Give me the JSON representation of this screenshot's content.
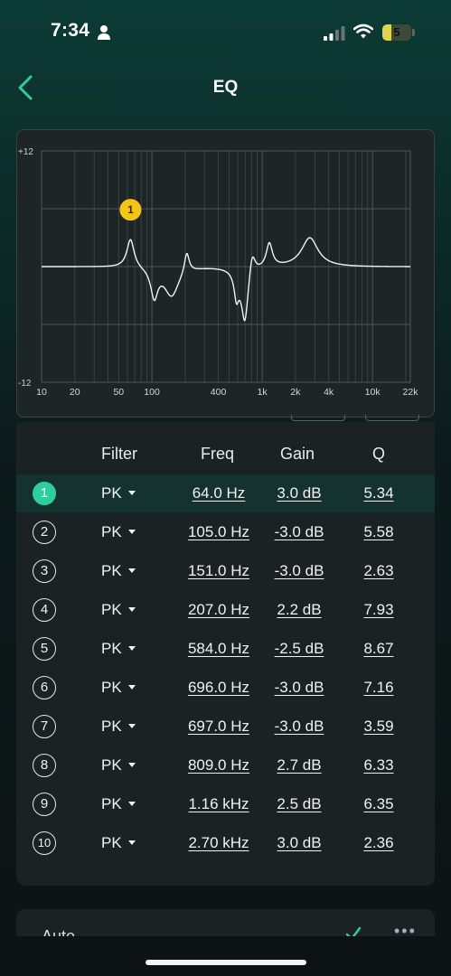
{
  "status_bar": {
    "time": "7:34",
    "battery_level": "5",
    "battery_fraction": 0.3
  },
  "header": {
    "title": "EQ",
    "back_icon": "chevron-left-icon"
  },
  "graph": {
    "y_max_label": "+12",
    "y_min_label": "-12",
    "x_ticks": [
      {
        "freq": 10,
        "label": "10"
      },
      {
        "freq": 20,
        "label": "20"
      },
      {
        "freq": 50,
        "label": "50"
      },
      {
        "freq": 100,
        "label": "100"
      },
      {
        "freq": 400,
        "label": "400"
      },
      {
        "freq": 1000,
        "label": "1k"
      },
      {
        "freq": 2000,
        "label": "2k"
      },
      {
        "freq": 4000,
        "label": "4k"
      },
      {
        "freq": 10000,
        "label": "10k"
      },
      {
        "freq": 22000,
        "label": "22k"
      }
    ],
    "selected_marker_label": "1"
  },
  "table": {
    "headers": {
      "filter": "Filter",
      "freq": "Freq",
      "gain": "Gain",
      "q": "Q"
    },
    "rows": [
      {
        "num": "1",
        "filter": "PK",
        "freq": "64.0 Hz",
        "gain": "3.0 dB",
        "q": "5.34",
        "selected": true
      },
      {
        "num": "2",
        "filter": "PK",
        "freq": "105.0 Hz",
        "gain": "-3.0 dB",
        "q": "5.58"
      },
      {
        "num": "3",
        "filter": "PK",
        "freq": "151.0 Hz",
        "gain": "-3.0 dB",
        "q": "2.63"
      },
      {
        "num": "4",
        "filter": "PK",
        "freq": "207.0 Hz",
        "gain": "2.2 dB",
        "q": "7.93"
      },
      {
        "num": "5",
        "filter": "PK",
        "freq": "584.0 Hz",
        "gain": "-2.5 dB",
        "q": "8.67"
      },
      {
        "num": "6",
        "filter": "PK",
        "freq": "696.0 Hz",
        "gain": "-3.0 dB",
        "q": "7.16"
      },
      {
        "num": "7",
        "filter": "PK",
        "freq": "697.0 Hz",
        "gain": "-3.0 dB",
        "q": "3.59"
      },
      {
        "num": "8",
        "filter": "PK",
        "freq": "809.0 Hz",
        "gain": "2.7 dB",
        "q": "6.33"
      },
      {
        "num": "9",
        "filter": "PK",
        "freq": "1.16 kHz",
        "gain": "2.5 dB",
        "q": "6.35"
      },
      {
        "num": "10",
        "filter": "PK",
        "freq": "2.70 kHz",
        "gain": "3.0 dB",
        "q": "2.36"
      }
    ]
  },
  "auto_section": {
    "label": "Auto"
  },
  "colors": {
    "accent": "#2ecf9d",
    "marker": "#f5c518",
    "selected_row": "#14322f"
  }
}
